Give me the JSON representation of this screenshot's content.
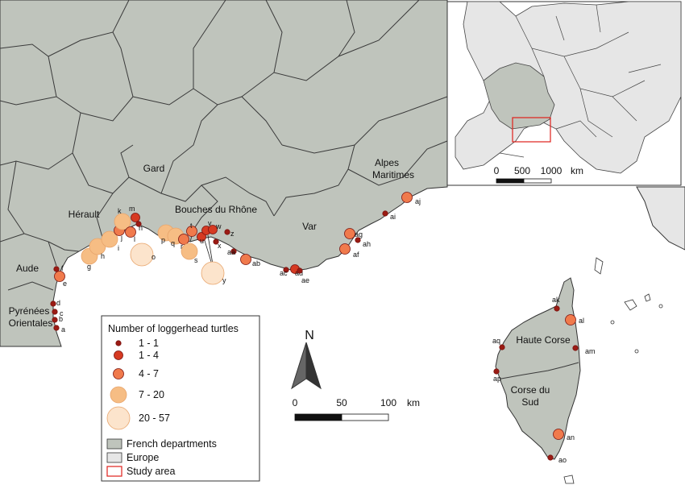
{
  "regions": {
    "aude": "Aude",
    "pyrenees_line1": "Pyrénées",
    "pyrenees_line2": "Orientales",
    "herault": "Hérault",
    "gard": "Gard",
    "bouches": "Bouches du Rhône",
    "var": "Var",
    "alpes_line1": "Alpes",
    "alpes_line2": "Maritimes",
    "haute_corse": "Haute Corse",
    "corse_sud_line1": "Corse du",
    "corse_sud_line2": "Sud"
  },
  "sites": [
    {
      "id": "a",
      "cls": "1"
    },
    {
      "id": "b",
      "cls": "1"
    },
    {
      "id": "c",
      "cls": "1"
    },
    {
      "id": "d",
      "cls": "1"
    },
    {
      "id": "e",
      "cls": "3"
    },
    {
      "id": "f",
      "cls": "1"
    },
    {
      "id": "g",
      "cls": "4"
    },
    {
      "id": "h",
      "cls": "4"
    },
    {
      "id": "i",
      "cls": "4"
    },
    {
      "id": "j",
      "cls": "3"
    },
    {
      "id": "k",
      "cls": "4"
    },
    {
      "id": "l",
      "cls": "3"
    },
    {
      "id": "m",
      "cls": "2"
    },
    {
      "id": "n",
      "cls": "1"
    },
    {
      "id": "o",
      "cls": "5"
    },
    {
      "id": "p",
      "cls": "4"
    },
    {
      "id": "q",
      "cls": "4"
    },
    {
      "id": "r",
      "cls": "3"
    },
    {
      "id": "s",
      "cls": "4"
    },
    {
      "id": "t",
      "cls": "3"
    },
    {
      "id": "u",
      "cls": "2"
    },
    {
      "id": "v",
      "cls": "2"
    },
    {
      "id": "w",
      "cls": "2"
    },
    {
      "id": "x",
      "cls": "1"
    },
    {
      "id": "y",
      "cls": "5"
    },
    {
      "id": "z",
      "cls": "1"
    },
    {
      "id": "aa",
      "cls": "1"
    },
    {
      "id": "ab",
      "cls": "3"
    },
    {
      "id": "ac",
      "cls": "1"
    },
    {
      "id": "ad",
      "cls": "2"
    },
    {
      "id": "ae",
      "cls": "1"
    },
    {
      "id": "af",
      "cls": "3"
    },
    {
      "id": "ag",
      "cls": "3"
    },
    {
      "id": "ah",
      "cls": "1"
    },
    {
      "id": "ai",
      "cls": "1"
    },
    {
      "id": "aj",
      "cls": "3"
    },
    {
      "id": "ak",
      "cls": "1"
    },
    {
      "id": "al",
      "cls": "3"
    },
    {
      "id": "am",
      "cls": "1"
    },
    {
      "id": "an",
      "cls": "3"
    },
    {
      "id": "ao",
      "cls": "1"
    },
    {
      "id": "ap",
      "cls": "1"
    },
    {
      "id": "aq",
      "cls": "1"
    }
  ],
  "legend": {
    "title": "Number of loggerhead turtles",
    "classes": [
      {
        "label": "1 - 1",
        "color": "#9b1b14"
      },
      {
        "label": "1 - 4",
        "color": "#d63a22"
      },
      {
        "label": "4 - 7",
        "color": "#f07a4c"
      },
      {
        "label": "7 - 20",
        "color": "#f6bd84"
      },
      {
        "label": "20 - 57",
        "color": "#fce4cc"
      }
    ],
    "french_departments": "French departments",
    "europe": "Europe",
    "study_area": "Study area"
  },
  "north_arrow": {
    "label": "N"
  },
  "scalebar_main": {
    "ticks": [
      "0",
      "50",
      "100"
    ],
    "unit": "km"
  },
  "inset": {
    "scalebar": {
      "ticks": [
        "0",
        "500",
        "1000"
      ],
      "unit": "km"
    }
  },
  "colors": {
    "french_departments": "#bfc4bc",
    "europe": "#e6e6e6",
    "sea": "#ffffff",
    "border": "#3a3a3a",
    "study_area": "#e0201b"
  }
}
